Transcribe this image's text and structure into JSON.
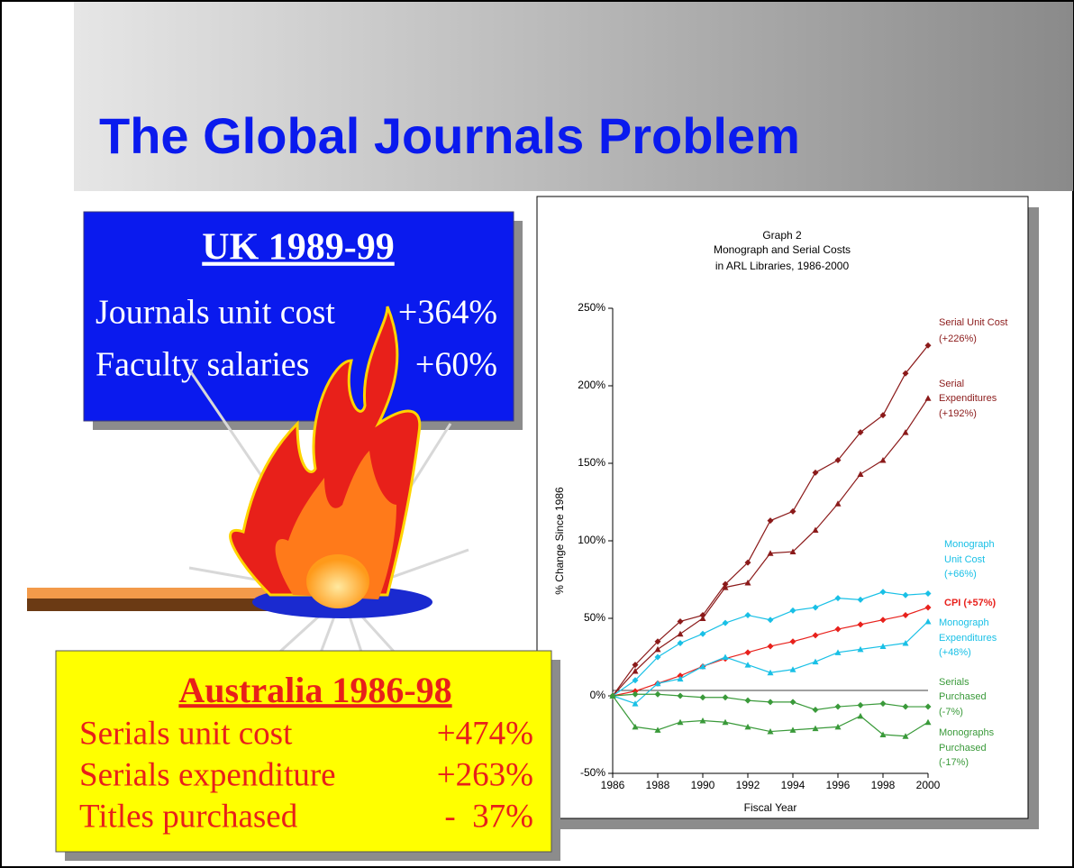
{
  "slide": {
    "title": "The Global Journals Problem"
  },
  "uk_box": {
    "heading": "UK 1989-99",
    "rows": [
      [
        "Journals unit cost",
        "+364%"
      ],
      [
        "Faculty salaries",
        "+60%"
      ]
    ]
  },
  "australia_box": {
    "heading": "Australia 1986-98",
    "rows": [
      [
        "Serials unit cost",
        "+474%"
      ],
      [
        "Serials expenditure",
        "+263%"
      ],
      [
        "Titles purchased",
        "-  37%"
      ]
    ]
  },
  "chart_data": {
    "type": "line",
    "subtitle": "Graph 2",
    "title": [
      "Monograph and Serial Costs",
      "in ARL Libraries, 1986-2000"
    ],
    "x_label": "Fiscal Year",
    "y_label": "% Change Since 1986",
    "x": [
      1986,
      1987,
      1988,
      1989,
      1990,
      1991,
      1992,
      1993,
      1994,
      1995,
      1996,
      1997,
      1998,
      1999,
      2000
    ],
    "xlim": [
      1986,
      2000
    ],
    "xticks": [
      1986,
      1988,
      1990,
      1992,
      1994,
      1996,
      1998,
      2000
    ],
    "ylim": [
      -50,
      250
    ],
    "yticks": [
      {
        "value": -50,
        "label": "-50%"
      },
      {
        "value": 0,
        "label": "0%"
      },
      {
        "value": 50,
        "label": "50%"
      },
      {
        "value": 100,
        "label": "100%"
      },
      {
        "value": 150,
        "label": "150%"
      },
      {
        "value": 200,
        "label": "200%"
      },
      {
        "value": 250,
        "label": "250%"
      }
    ],
    "series": [
      {
        "label": [
          "Serial Unit Cost",
          "(+226%)"
        ],
        "color": "#8b1a1a",
        "marker": "diamond",
        "values": [
          0,
          20,
          35,
          48,
          52,
          72,
          86,
          113,
          119,
          144,
          152,
          170,
          181,
          208,
          226
        ]
      },
      {
        "label": [
          "Serial",
          "Expenditures",
          "(+192%)"
        ],
        "color": "#8b1a1a",
        "marker": "triangle",
        "values": [
          0,
          16,
          30,
          40,
          50,
          70,
          73,
          92,
          93,
          107,
          124,
          143,
          152,
          170,
          192
        ]
      },
      {
        "label": [
          "Monograph",
          "Unit Cost",
          "(+66%)"
        ],
        "color": "#19c0e6",
        "marker": "diamond",
        "values": [
          0,
          10,
          25,
          34,
          40,
          47,
          52,
          49,
          55,
          57,
          63,
          62,
          67,
          65,
          66
        ]
      },
      {
        "label": [
          "CPI (+57%)"
        ],
        "color": "#e8211c",
        "marker": "diamond",
        "bold": true,
        "values": [
          0,
          3,
          8,
          13,
          19,
          24,
          28,
          32,
          35,
          39,
          43,
          46,
          49,
          52,
          57
        ]
      },
      {
        "label": [
          "Monograph",
          "Expenditures",
          "(+48%)"
        ],
        "color": "#19c0e6",
        "marker": "triangle",
        "values": [
          0,
          -5,
          8,
          11,
          19,
          25,
          20,
          15,
          17,
          22,
          28,
          30,
          32,
          34,
          48
        ]
      },
      {
        "label": [
          "Serials",
          "Purchased",
          "(-7%)"
        ],
        "color": "#3a9a3a",
        "marker": "diamond",
        "values": [
          0,
          1,
          1,
          0,
          -1,
          -1,
          -3,
          -4,
          -4,
          -9,
          -7,
          -6,
          -5,
          -7,
          -7
        ]
      },
      {
        "label": [
          "Monographs",
          "Purchased",
          "(-17%)"
        ],
        "color": "#3a9a3a",
        "marker": "triangle",
        "values": [
          0,
          -20,
          -22,
          -17,
          -16,
          -17,
          -20,
          -23,
          -22,
          -21,
          -20,
          -13,
          -25,
          -26,
          -17
        ]
      }
    ]
  }
}
